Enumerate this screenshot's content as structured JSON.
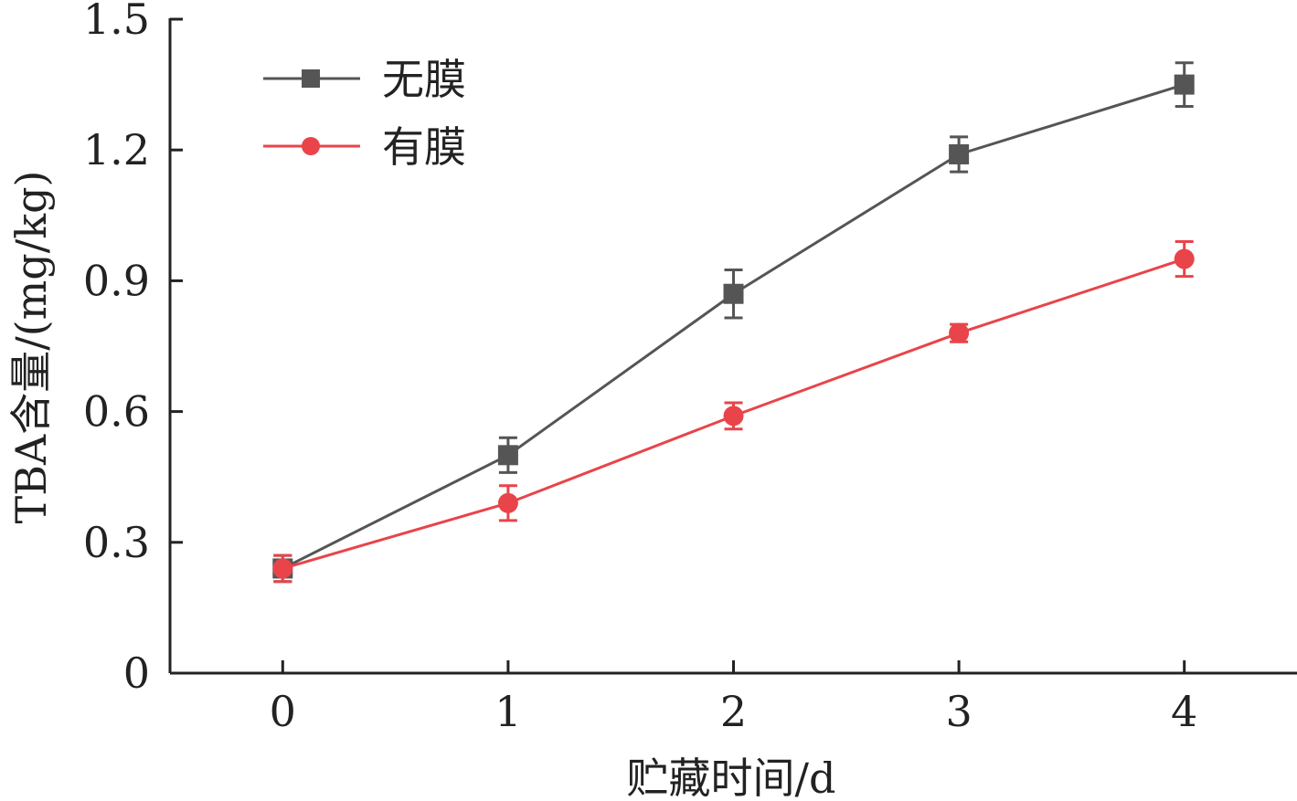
{
  "chart_data": {
    "type": "line",
    "xlabel": "贮藏时间/d",
    "ylabel": "TBA含量/(mg/kg)",
    "x": [
      0,
      1,
      2,
      3,
      4
    ],
    "xlim": [
      -0.5,
      4.5
    ],
    "ylim": [
      0,
      1.5
    ],
    "x_ticks": [
      "0",
      "1",
      "2",
      "3",
      "4"
    ],
    "y_ticks": [
      "0",
      "0.3",
      "0.6",
      "0.9",
      "1.2",
      "1.5"
    ],
    "grid": false,
    "legend_position": "top-left",
    "series": [
      {
        "name": "无膜",
        "marker": "square",
        "color": "#555555",
        "values": [
          0.24,
          0.5,
          0.87,
          1.19,
          1.35
        ],
        "errors": [
          0.03,
          0.04,
          0.055,
          0.04,
          0.05
        ]
      },
      {
        "name": "有膜",
        "marker": "circle",
        "color": "#e8444a",
        "values": [
          0.24,
          0.39,
          0.59,
          0.78,
          0.95
        ],
        "errors": [
          0.03,
          0.04,
          0.03,
          0.02,
          0.04
        ]
      }
    ]
  }
}
